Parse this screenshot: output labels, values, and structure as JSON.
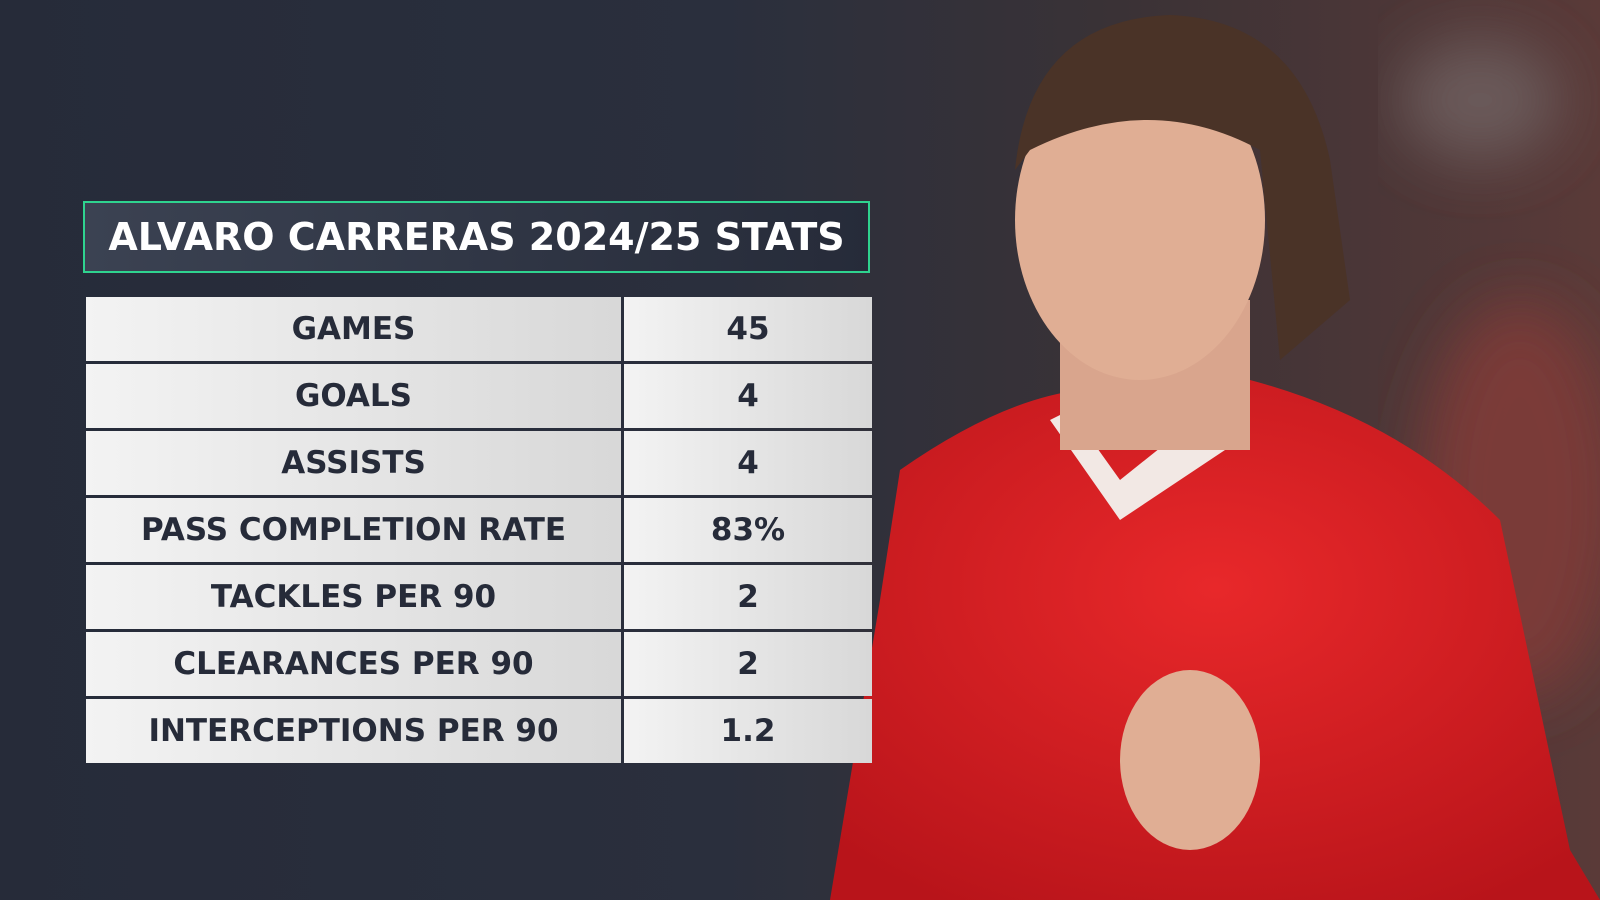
{
  "header": {
    "title": "ALVARO CARRERAS 2024/25 STATS"
  },
  "table": {
    "rows": [
      [
        "GAMES",
        "45"
      ],
      [
        "GOALS",
        "4"
      ],
      [
        "ASSISTS",
        "4"
      ],
      [
        "PASS COMPLETION RATE",
        "83%"
      ],
      [
        "TACKLES PER 90",
        "2"
      ],
      [
        "CLEARANCES PER 90",
        "2"
      ],
      [
        "INTERCEPTIONS PER 90",
        "1.2"
      ]
    ]
  }
}
